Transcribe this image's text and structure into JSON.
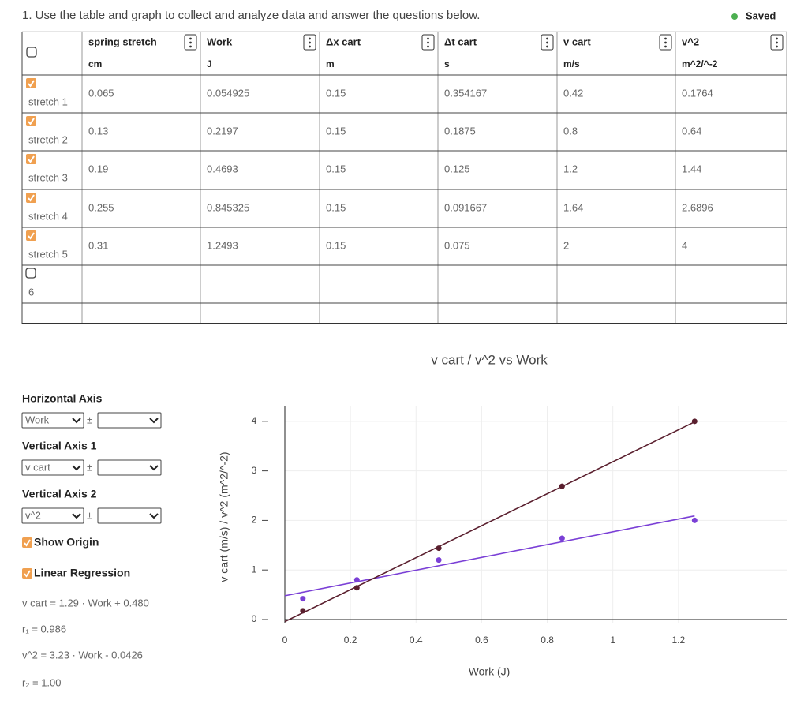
{
  "header": {
    "question": "1. Use the table and graph to collect and analyze data and answer the questions below.",
    "status": "Saved"
  },
  "table": {
    "columns": [
      {
        "name": "spring stretch",
        "unit": "cm"
      },
      {
        "name": "Work",
        "unit": "J"
      },
      {
        "name": "Δx cart",
        "unit": "m"
      },
      {
        "name": "Δt cart",
        "unit": "s"
      },
      {
        "name": "v cart",
        "unit": "m/s"
      },
      {
        "name": "v^2",
        "unit": "m^2/^-2"
      }
    ],
    "header_checked": false,
    "rows": [
      {
        "label": "stretch 1",
        "checked": true,
        "cells": [
          0.065,
          0.054925,
          0.15,
          0.354167,
          0.42,
          0.1764
        ]
      },
      {
        "label": "stretch 2",
        "checked": true,
        "cells": [
          0.13,
          0.2197,
          0.15,
          0.1875,
          0.8,
          0.64
        ]
      },
      {
        "label": "stretch 3",
        "checked": true,
        "cells": [
          0.19,
          0.4693,
          0.15,
          0.125,
          1.2,
          1.44
        ]
      },
      {
        "label": "stretch 4",
        "checked": true,
        "cells": [
          0.255,
          0.845325,
          0.15,
          0.091667,
          1.64,
          2.6896
        ]
      },
      {
        "label": "stretch 5",
        "checked": true,
        "cells": [
          0.31,
          1.2493,
          0.15,
          0.075,
          2,
          4
        ]
      },
      {
        "label": "6",
        "checked": false
      }
    ]
  },
  "controls": {
    "horizontal_axis": {
      "label": "Horizontal Axis",
      "value": "Work"
    },
    "vertical_axis_1": {
      "label": "Vertical Axis 1"
    },
    "vertical_axis_2": {
      "label": "Vertical Axis 2"
    },
    "plus_minus": "±",
    "show_origin": {
      "label": "Show Origin",
      "checked": true
    },
    "linear_regression": {
      "label": "Linear Regression",
      "checked": true
    },
    "equations": [
      "v cart = 1.29 · Work + 0.480",
      "r₁ = 0.986",
      "v^2 = 3.23 · Work - 0.0426",
      "r₂ = 1.00"
    ]
  },
  "chart_data": {
    "type": "scatter",
    "title": "v cart / v^2 vs Work",
    "x_label": "Work (J)",
    "y_label": "v cart (m/s) / v^2 (m^2/^-2)",
    "x": [
      0.054925,
      0.2197,
      0.4693,
      0.845325,
      1.2493
    ],
    "series": [
      {
        "name": "v cart",
        "color": "#7a3fd6",
        "values": [
          0.42,
          0.8,
          1.2,
          1.64,
          2
        ]
      },
      {
        "name": "v^2",
        "color": "#5a1f2e",
        "values": [
          0.1764,
          0.64,
          1.44,
          2.6896,
          4
        ]
      }
    ],
    "xlim": [
      0,
      1.53
    ],
    "ylim": [
      -0.08,
      4.3
    ],
    "xticks": [
      0,
      0.2,
      0.4,
      0.6,
      0.8,
      1,
      1.2
    ],
    "yticks": [
      0,
      1,
      2,
      3,
      4
    ],
    "grid": true,
    "regression": true,
    "show_origin": true
  }
}
